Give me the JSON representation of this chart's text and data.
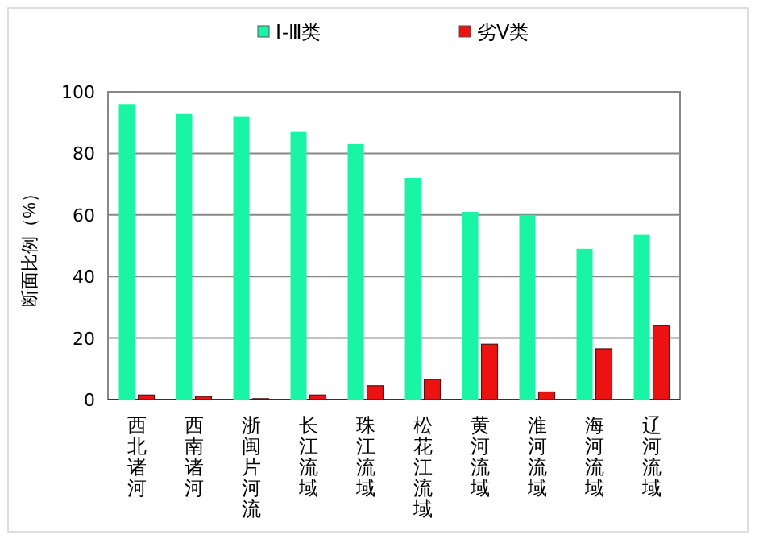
{
  "chart_data": {
    "type": "bar",
    "ylabel": "断面比例（%）",
    "categories": [
      "西北诸河",
      "西南诸河",
      "浙闽片河流",
      "长江流域",
      "珠江流域",
      "松花江流域",
      "黄河流域",
      "淮河流域",
      "海河流域",
      "辽河流域"
    ],
    "series": [
      {
        "name": "Ⅰ-Ⅲ类",
        "color": "#1af5a5",
        "values": [
          96,
          93,
          92,
          87,
          83,
          72,
          61,
          60,
          49,
          53.5
        ]
      },
      {
        "name": "劣Ⅴ类",
        "color": "#ee1111",
        "values": [
          1.5,
          1,
          0.3,
          1.5,
          4.5,
          6.5,
          18,
          2.5,
          16.5,
          24
        ]
      }
    ],
    "ylim": [
      0,
      100
    ],
    "yticks": [
      0,
      20,
      40,
      60,
      80,
      100
    ],
    "grid": "y",
    "legend": "top"
  }
}
